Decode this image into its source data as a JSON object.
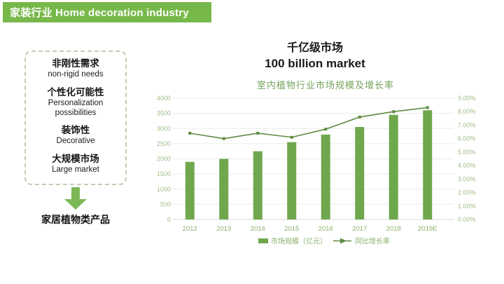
{
  "header": {
    "title": "家装行业 Home decoration industry",
    "bg_color": "#77b84a"
  },
  "sidebar": {
    "items": [
      {
        "zh": "非刚性需求",
        "en": "non-rigid needs"
      },
      {
        "zh": "个性化可能性",
        "en": "Personalization possibilities"
      },
      {
        "zh": "装饰性",
        "en": "Decorative"
      },
      {
        "zh": "大规模市场",
        "en": "Large market"
      }
    ],
    "conclusion": "家居植物类产品",
    "arrow_icon": "down-block-arrow",
    "arrow_color": "#7cb956",
    "border_color": "#bfcfb2"
  },
  "main": {
    "title_zh": "千亿级市场",
    "title_en": "100 billion market"
  },
  "chart_data": {
    "type": "bar",
    "subtype": "bar+line combo, dual axis",
    "title": "室内植物行业市场规模及增长率",
    "categories": [
      "2012",
      "2013",
      "2014",
      "2015",
      "2016",
      "2017",
      "2018",
      "2019E"
    ],
    "series": [
      {
        "name": "市场规模（亿元）",
        "type": "bar",
        "axis": "left",
        "color": "#6fa74d",
        "values": [
          1900,
          2000,
          2250,
          2550,
          2800,
          3050,
          3450,
          3600
        ]
      },
      {
        "name": "同比增长率",
        "type": "line",
        "axis": "right",
        "color": "#5d8c3f",
        "values": [
          6.4,
          6.0,
          6.4,
          6.1,
          6.7,
          7.6,
          8.0,
          8.3
        ]
      }
    ],
    "left_axis": {
      "min": 0,
      "max": 4000,
      "step": 500,
      "ticks": [
        "0",
        "500",
        "1000",
        "1500",
        "2000",
        "2500",
        "3000",
        "3500",
        "4000"
      ]
    },
    "right_axis": {
      "min": 0,
      "max": 9,
      "step": 1,
      "ticks": [
        "0.00%",
        "1.00%",
        "2.00%",
        "3.00%",
        "4.00%",
        "5.00%",
        "6.00%",
        "7.00%",
        "8.00%",
        "9.00%"
      ]
    },
    "grid": true,
    "legend_position": "bottom",
    "axis_text_color": "#a0bd88",
    "category_text_color": "#8bb06c",
    "legend_text_color": "#8bb06c",
    "grid_color": "#ebebeb"
  }
}
